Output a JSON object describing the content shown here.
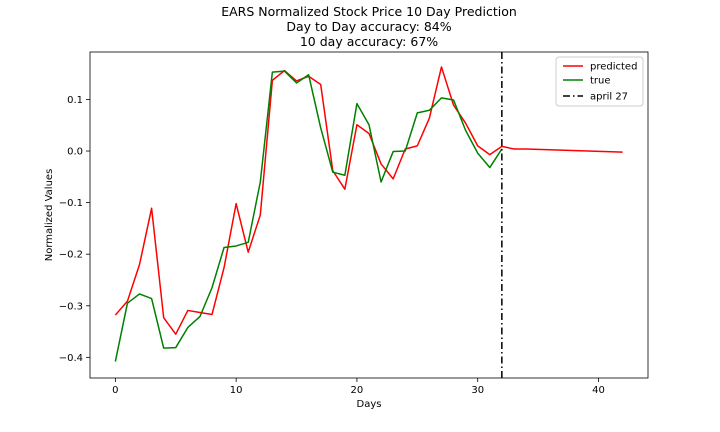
{
  "chart_data": {
    "type": "line",
    "title": "EARS Normalized Stock Price 10 Day Prediction",
    "subtitle_lines": [
      "Day to Day accuracy: 84%",
      "10 day accuracy: 67%"
    ],
    "xlabel": "Days",
    "ylabel": "Normalized Values",
    "xlim": [
      -2.1,
      44.1
    ],
    "ylim": [
      -0.44,
      0.192
    ],
    "xticks": [
      0,
      10,
      20,
      30,
      40
    ],
    "yticks": [
      -0.4,
      -0.3,
      -0.2,
      -0.1,
      0.0,
      0.1
    ],
    "xtick_labels": [
      "0",
      "10",
      "20",
      "30",
      "40"
    ],
    "ytick_labels": [
      "−0.4",
      "−0.3",
      "−0.2",
      "−0.1",
      "0.0",
      "0.1"
    ],
    "grid": false,
    "legend_position": "top-right",
    "series": [
      {
        "name": "predicted",
        "color": "#ff0000",
        "style": "solid",
        "x": [
          0,
          1,
          2,
          3,
          4,
          5,
          6,
          7,
          8,
          9,
          10,
          11,
          12,
          13,
          14,
          15,
          16,
          17,
          18,
          19,
          20,
          21,
          22,
          23,
          24,
          25,
          26,
          27,
          28,
          29,
          30,
          31,
          32,
          33,
          34,
          42
        ],
        "y": [
          -0.318,
          -0.291,
          -0.22,
          -0.111,
          -0.323,
          -0.355,
          -0.309,
          -0.313,
          -0.317,
          -0.226,
          -0.102,
          -0.196,
          -0.124,
          0.137,
          0.156,
          0.136,
          0.145,
          0.129,
          -0.038,
          -0.074,
          0.051,
          0.034,
          -0.025,
          -0.054,
          0.004,
          0.01,
          0.064,
          0.163,
          0.089,
          0.054,
          0.01,
          -0.007,
          0.009,
          0.004,
          0.004,
          -0.002
        ]
      },
      {
        "name": "true",
        "color": "#008000",
        "style": "solid",
        "x": [
          0,
          1,
          2,
          3,
          4,
          5,
          6,
          7,
          8,
          9,
          10,
          11,
          12,
          13,
          14,
          15,
          16,
          17,
          18,
          19,
          20,
          21,
          22,
          23,
          24,
          25,
          26,
          27,
          28,
          29,
          30,
          31,
          32
        ],
        "y": [
          -0.408,
          -0.295,
          -0.277,
          -0.286,
          -0.382,
          -0.381,
          -0.342,
          -0.321,
          -0.265,
          -0.187,
          -0.184,
          -0.177,
          -0.06,
          0.153,
          0.155,
          0.132,
          0.148,
          0.045,
          -0.041,
          -0.047,
          0.092,
          0.051,
          -0.06,
          -0.001,
          -0.0,
          0.074,
          0.079,
          0.103,
          0.099,
          0.04,
          -0.004,
          -0.032,
          0.004
        ]
      }
    ],
    "vlines": [
      {
        "name": "april 27",
        "x": 32,
        "color": "#000000",
        "style": "dashdot"
      }
    ]
  }
}
